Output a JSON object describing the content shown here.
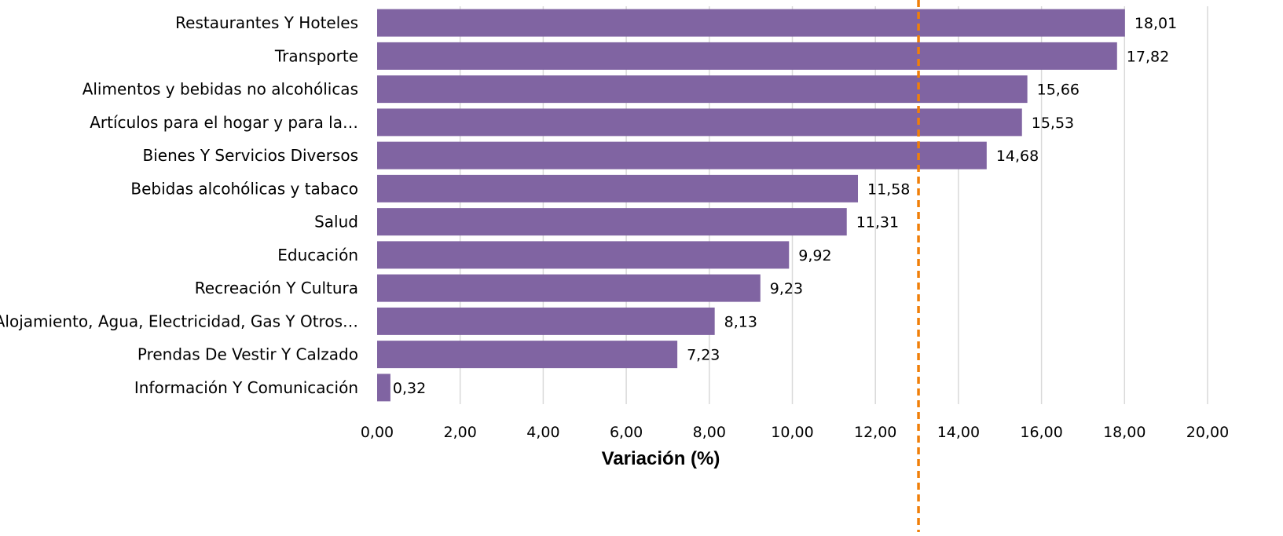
{
  "chart_data": {
    "type": "bar",
    "orientation": "horizontal",
    "categories": [
      "Restaurantes Y Hoteles",
      "Transporte",
      "Alimentos y bebidas no alcohólicas",
      "Artículos para el hogar y para la…",
      "Bienes Y Servicios Diversos",
      "Bebidas alcohólicas y tabaco",
      "Salud",
      "Educación",
      "Recreación Y Cultura",
      "Alojamiento, Agua, Electricidad, Gas Y Otros…",
      "Prendas De Vestir Y Calzado",
      "Información Y Comunicación"
    ],
    "values": [
      18.01,
      17.82,
      15.66,
      15.53,
      14.68,
      11.58,
      11.31,
      9.92,
      9.23,
      8.13,
      7.23,
      0.32
    ],
    "data_labels": [
      "18,01",
      "17,82",
      "15,66",
      "15,53",
      "14,68",
      "11,58",
      "11,31",
      "9,92",
      "9,23",
      "8,13",
      "7,23",
      "0,32"
    ],
    "xlabel": "Variación (%)",
    "ylabel": "",
    "title": "",
    "xlim": [
      0,
      20
    ],
    "x_ticks": [
      0,
      2,
      4,
      6,
      8,
      10,
      12,
      14,
      16,
      18,
      20
    ],
    "x_tick_labels": [
      "0,00",
      "2,00",
      "4,00",
      "6,00",
      "8,00",
      "10,00",
      "12,00",
      "14,00",
      "16,00",
      "18,00",
      "20,00"
    ],
    "reference_line": {
      "value": 13.0,
      "style": "dashed"
    },
    "grid": "vertical",
    "legend": "none",
    "colors": {
      "bar": "#8064A2",
      "reference_line": "#F07F09",
      "grid": "#D9D9D9"
    }
  }
}
